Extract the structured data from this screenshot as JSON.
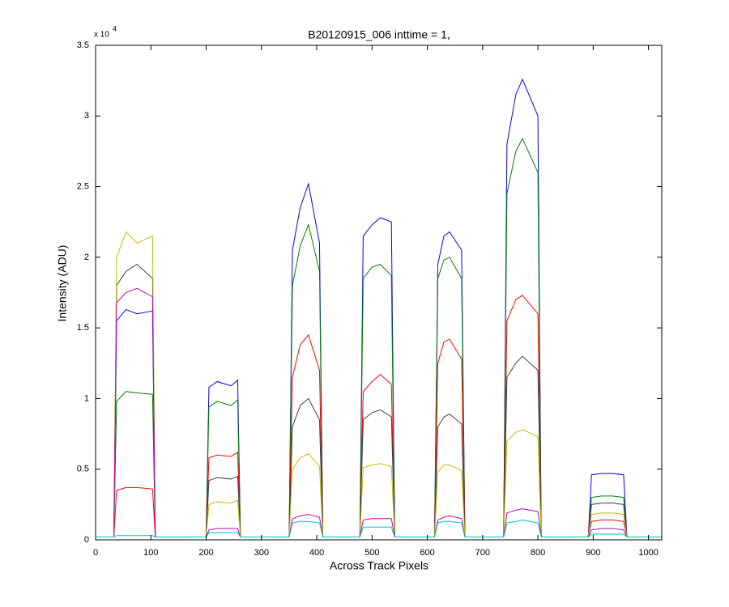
{
  "chart_data": {
    "type": "line",
    "title": "B20120915_006 inttime = 1,",
    "x_label": "Across Track Pixels",
    "y_label": "Intensity (ADU)",
    "y_multiplier": "x 10",
    "y_multiplier_exponent": "4",
    "xlim": [
      0,
      1024
    ],
    "ylim": [
      0,
      35000
    ],
    "xticks": [
      0,
      100,
      200,
      300,
      400,
      500,
      600,
      700,
      800,
      900,
      1000
    ],
    "yticks": [
      0,
      {
        "value": 5000,
        "label": "0.5"
      },
      {
        "value": 10000,
        "label": "1"
      },
      {
        "value": 15000,
        "label": "1.5"
      },
      {
        "value": 20000,
        "label": "2"
      },
      {
        "value": 25000,
        "label": "2.5"
      },
      {
        "value": 30000,
        "label": "3"
      },
      {
        "value": 35000,
        "label": "3.5"
      }
    ],
    "grid": false,
    "x": [
      0,
      33,
      38,
      55,
      75,
      103,
      108,
      200,
      205,
      220,
      245,
      257,
      262,
      350,
      356,
      370,
      385,
      405,
      411,
      478,
      484,
      500,
      515,
      535,
      541,
      613,
      619,
      630,
      640,
      662,
      668,
      738,
      744,
      760,
      772,
      800,
      806,
      891,
      897,
      915,
      935,
      955,
      961,
      1024
    ],
    "series": [
      {
        "color": "#0000ff",
        "values": [
          200,
          200,
          15500,
          16300,
          16000,
          16200,
          200,
          200,
          10800,
          11200,
          10900,
          11300,
          200,
          200,
          20500,
          23500,
          25200,
          21000,
          200,
          200,
          21500,
          22300,
          22800,
          22500,
          200,
          200,
          19500,
          21500,
          21800,
          20500,
          200,
          200,
          28000,
          31500,
          32600,
          30000,
          200,
          200,
          4600,
          4700,
          4700,
          4600,
          200,
          200
        ]
      },
      {
        "color": "#008000",
        "values": [
          200,
          200,
          9800,
          10500,
          10400,
          10300,
          200,
          200,
          9400,
          9800,
          9500,
          9900,
          200,
          200,
          18000,
          20800,
          22300,
          19000,
          200,
          200,
          18500,
          19300,
          19500,
          18700,
          200,
          200,
          18500,
          19800,
          20000,
          18500,
          200,
          200,
          24500,
          27500,
          28400,
          26000,
          200,
          200,
          3000,
          3100,
          3100,
          3000,
          200,
          200
        ]
      },
      {
        "color": "#ff0000",
        "values": [
          200,
          200,
          3500,
          3700,
          3700,
          3600,
          200,
          200,
          5800,
          6000,
          5900,
          6200,
          200,
          200,
          11500,
          13800,
          14500,
          12000,
          200,
          200,
          10500,
          11200,
          11700,
          11000,
          200,
          200,
          12500,
          14000,
          14200,
          12800,
          200,
          200,
          15500,
          17000,
          17300,
          16000,
          200,
          200,
          1300,
          1400,
          1400,
          1300,
          200,
          200
        ]
      },
      {
        "color": "#404040",
        "values": [
          200,
          200,
          18000,
          19000,
          19500,
          18500,
          200,
          200,
          4200,
          4400,
          4300,
          4500,
          200,
          200,
          8000,
          9500,
          10000,
          8500,
          200,
          200,
          8500,
          9000,
          9200,
          8700,
          200,
          200,
          8000,
          8700,
          8900,
          8200,
          200,
          200,
          11500,
          12500,
          13000,
          12000,
          200,
          200,
          2500,
          2600,
          2600,
          2500,
          200,
          200
        ]
      },
      {
        "color": "#bfbf00",
        "values": [
          200,
          200,
          20000,
          21800,
          21000,
          21500,
          200,
          200,
          2500,
          2700,
          2600,
          2800,
          200,
          200,
          5000,
          5800,
          6100,
          5200,
          200,
          200,
          5100,
          5300,
          5400,
          5200,
          200,
          200,
          4800,
          5300,
          5300,
          4900,
          200,
          200,
          7000,
          7600,
          7800,
          7300,
          200,
          200,
          1800,
          1900,
          1900,
          1800,
          200,
          200
        ]
      },
      {
        "color": "#bf00bf",
        "values": [
          200,
          200,
          16800,
          17500,
          17800,
          17200,
          200,
          200,
          700,
          800,
          800,
          800,
          200,
          200,
          1500,
          1700,
          1800,
          1600,
          200,
          200,
          1400,
          1500,
          1500,
          1500,
          200,
          200,
          1400,
          1600,
          1700,
          1500,
          200,
          200,
          1900,
          2100,
          2200,
          2000,
          200,
          200,
          700,
          800,
          800,
          700,
          200,
          200
        ]
      },
      {
        "color": "#00bfbf",
        "values": [
          200,
          200,
          300,
          300,
          300,
          300,
          200,
          200,
          500,
          500,
          500,
          500,
          200,
          200,
          1200,
          1300,
          1300,
          1200,
          200,
          200,
          900,
          900,
          900,
          900,
          200,
          200,
          1200,
          1300,
          1300,
          1200,
          200,
          200,
          1200,
          1300,
          1400,
          1200,
          200,
          200,
          400,
          400,
          400,
          400,
          200,
          200
        ]
      }
    ]
  }
}
